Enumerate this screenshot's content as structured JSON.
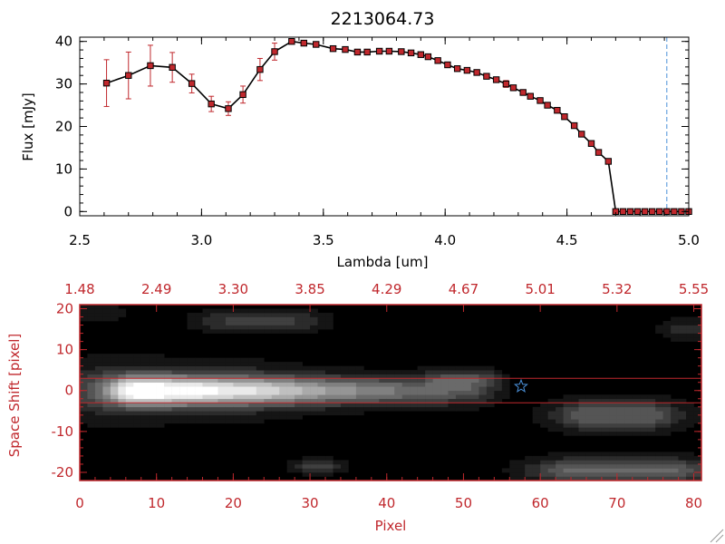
{
  "chart_data": [
    {
      "type": "line",
      "title": "2213064.73",
      "xlabel": "Lambda [um]",
      "ylabel": "Flux [mJy]",
      "xlim": [
        2.5,
        5.0
      ],
      "ylim": [
        -1,
        41
      ],
      "xticks": [
        "2.5",
        "3.0",
        "3.5",
        "4.0",
        "4.5",
        "5.0"
      ],
      "xtick_values": [
        2.5,
        3.0,
        3.5,
        4.0,
        4.5,
        5.0
      ],
      "yticks": [
        "0",
        "10",
        "20",
        "30",
        "40"
      ],
      "ytick_values": [
        0,
        10,
        20,
        30,
        40
      ],
      "vline_x": 4.91,
      "colors": {
        "line": "#000000",
        "marker": "#c0282d",
        "errorbar": "#c0282d",
        "vline": "#4a90d9"
      },
      "series": [
        {
          "x": [
            2.61,
            2.7,
            2.79,
            2.88,
            2.96,
            3.04,
            3.11,
            3.17,
            3.24,
            3.3,
            3.37,
            3.42,
            3.47,
            3.54,
            3.59,
            3.64,
            3.68,
            3.73,
            3.77,
            3.82,
            3.86,
            3.9,
            3.93,
            3.97,
            4.01,
            4.05,
            4.09,
            4.13,
            4.17,
            4.21,
            4.25,
            4.28,
            4.32,
            4.35,
            4.39,
            4.42,
            4.46,
            4.49,
            4.53,
            4.56,
            4.6,
            4.63,
            4.67,
            4.7,
            4.73,
            4.76,
            4.79,
            4.82,
            4.85,
            4.88,
            4.91,
            4.94,
            4.97,
            5.0
          ],
          "y": [
            30.2,
            32.0,
            34.3,
            33.9,
            30.1,
            25.3,
            24.2,
            27.5,
            33.4,
            37.6,
            40.0,
            39.6,
            39.3,
            38.3,
            38.1,
            37.5,
            37.5,
            37.7,
            37.7,
            37.6,
            37.3,
            36.9,
            36.4,
            35.5,
            34.5,
            33.6,
            33.2,
            32.7,
            31.8,
            31.0,
            30.0,
            29.1,
            28.0,
            27.1,
            26.1,
            25.0,
            23.8,
            22.3,
            20.2,
            18.2,
            16.0,
            13.9,
            11.8,
            0,
            0,
            0,
            0,
            0,
            0,
            0,
            0,
            0,
            0,
            0
          ],
          "yerr": [
            5.5,
            5.5,
            4.8,
            3.5,
            2.2,
            1.8,
            1.6,
            2.0,
            2.6,
            2.0,
            0.6,
            0.5,
            0.5,
            0.4,
            0.4,
            0.4,
            0.4,
            0.4,
            0.4,
            0.4,
            0.4,
            0.4,
            0.4,
            0.4,
            0.4,
            0.4,
            0.4,
            0.4,
            0.4,
            0.4,
            0.8,
            0.4,
            0.4,
            0.4,
            0.4,
            0.4,
            0.4,
            0.4,
            0.4,
            0.4,
            0.4,
            0.5,
            0.5,
            0.3,
            0.3,
            0.3,
            0.3,
            0.3,
            0.3,
            0.3,
            0.3,
            0.3,
            0.3,
            0.3
          ]
        }
      ]
    },
    {
      "type": "heatmap",
      "xlabel": "Pixel",
      "ylabel": "Space Shift [pixel]",
      "xlim": [
        0,
        81
      ],
      "ylim": [
        -22,
        21
      ],
      "xticks": [
        "0",
        "10",
        "20",
        "30",
        "40",
        "50",
        "60",
        "70",
        "80"
      ],
      "xtick_values": [
        0,
        10,
        20,
        30,
        40,
        50,
        60,
        70,
        80
      ],
      "yticks": [
        "-20",
        "-10",
        "0",
        "10",
        "20"
      ],
      "ytick_values": [
        -20,
        -10,
        0,
        10,
        20
      ],
      "top_ticks": [
        "1.48",
        "2.49",
        "3.30",
        "3.85",
        "4.29",
        "4.67",
        "5.01",
        "5.32",
        "5.55"
      ],
      "top_tick_values": [
        0,
        10,
        20,
        30,
        40,
        50,
        60,
        70,
        80
      ],
      "hlines_y": [
        3,
        -3
      ],
      "star": {
        "x": 57.5,
        "y": 1
      },
      "colors": {
        "axis": "#c0282d",
        "hline": "#c0282d",
        "star": "#4a90d9"
      },
      "blobs": [
        {
          "x": [
            8,
            50
          ],
          "y": 0,
          "sx": 3.0,
          "sy": 2.4,
          "peak": 0.95,
          "fade": 0.35
        },
        {
          "x": [
            5,
            20
          ],
          "y": 0,
          "sx": 7.0,
          "sy": 4.5,
          "peak": 0.28,
          "fade": 0.6
        },
        {
          "x": [
            48,
            52
          ],
          "y": 3,
          "sx": 2.0,
          "sy": 1.5,
          "peak": 0.22,
          "fade": 1
        },
        {
          "x": [
            19,
            28
          ],
          "y": 17,
          "sx": 3.0,
          "sy": 1.6,
          "peak": 0.22,
          "fade": 1
        },
        {
          "x": [
            67,
            73
          ],
          "y": -6,
          "sx": 4.0,
          "sy": 2.5,
          "peak": 0.38,
          "fade": 1
        },
        {
          "x": [
            65,
            76
          ],
          "y": -19.5,
          "sx": 4.5,
          "sy": 2.0,
          "peak": 0.42,
          "fade": 1
        },
        {
          "x": [
            30,
            32
          ],
          "y": -18.5,
          "sx": 1.8,
          "sy": 1.2,
          "peak": 0.22,
          "fade": 1
        },
        {
          "x": [
            78,
            80
          ],
          "y": 15,
          "sx": 1.5,
          "sy": 1.5,
          "peak": 0.18,
          "fade": 1
        },
        {
          "x": [
            1,
            3
          ],
          "y": 19,
          "sx": 2.0,
          "sy": 1.5,
          "peak": 0.12,
          "fade": 1
        }
      ]
    }
  ]
}
